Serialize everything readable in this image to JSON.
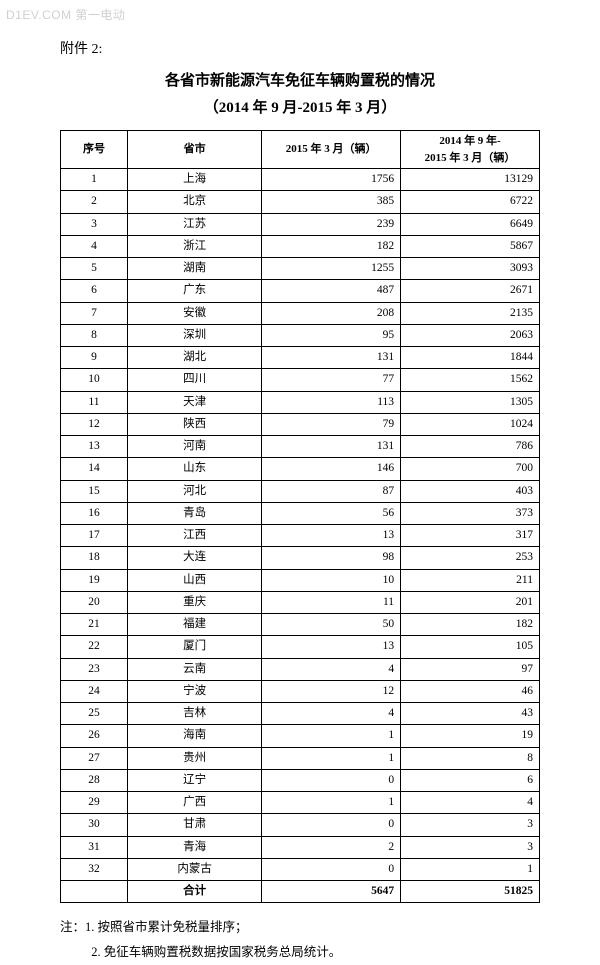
{
  "watermark": "D1EV.COM 第一电动",
  "attachment_label": "附件 2:",
  "title_line1": "各省市新能源汽车免征车辆购置税的情况",
  "title_line2": "（2014 年 9 月-2015 年 3 月）",
  "headers": {
    "num": "序号",
    "province": "省市",
    "col_a": "2015 年 3 月（辆）",
    "col_b": "2014 年 9 年-\n2015 年 3 月（辆）"
  },
  "rows": [
    {
      "n": "1",
      "p": "上海",
      "a": "1756",
      "b": "13129"
    },
    {
      "n": "2",
      "p": "北京",
      "a": "385",
      "b": "6722"
    },
    {
      "n": "3",
      "p": "江苏",
      "a": "239",
      "b": "6649"
    },
    {
      "n": "4",
      "p": "浙江",
      "a": "182",
      "b": "5867"
    },
    {
      "n": "5",
      "p": "湖南",
      "a": "1255",
      "b": "3093"
    },
    {
      "n": "6",
      "p": "广东",
      "a": "487",
      "b": "2671"
    },
    {
      "n": "7",
      "p": "安徽",
      "a": "208",
      "b": "2135"
    },
    {
      "n": "8",
      "p": "深圳",
      "a": "95",
      "b": "2063"
    },
    {
      "n": "9",
      "p": "湖北",
      "a": "131",
      "b": "1844"
    },
    {
      "n": "10",
      "p": "四川",
      "a": "77",
      "b": "1562"
    },
    {
      "n": "11",
      "p": "天津",
      "a": "113",
      "b": "1305"
    },
    {
      "n": "12",
      "p": "陕西",
      "a": "79",
      "b": "1024"
    },
    {
      "n": "13",
      "p": "河南",
      "a": "131",
      "b": "786"
    },
    {
      "n": "14",
      "p": "山东",
      "a": "146",
      "b": "700"
    },
    {
      "n": "15",
      "p": "河北",
      "a": "87",
      "b": "403"
    },
    {
      "n": "16",
      "p": "青岛",
      "a": "56",
      "b": "373"
    },
    {
      "n": "17",
      "p": "江西",
      "a": "13",
      "b": "317"
    },
    {
      "n": "18",
      "p": "大连",
      "a": "98",
      "b": "253"
    },
    {
      "n": "19",
      "p": "山西",
      "a": "10",
      "b": "211"
    },
    {
      "n": "20",
      "p": "重庆",
      "a": "11",
      "b": "201"
    },
    {
      "n": "21",
      "p": "福建",
      "a": "50",
      "b": "182"
    },
    {
      "n": "22",
      "p": "厦门",
      "a": "13",
      "b": "105"
    },
    {
      "n": "23",
      "p": "云南",
      "a": "4",
      "b": "97"
    },
    {
      "n": "24",
      "p": "宁波",
      "a": "12",
      "b": "46"
    },
    {
      "n": "25",
      "p": "吉林",
      "a": "4",
      "b": "43"
    },
    {
      "n": "26",
      "p": "海南",
      "a": "1",
      "b": "19"
    },
    {
      "n": "27",
      "p": "贵州",
      "a": "1",
      "b": "8"
    },
    {
      "n": "28",
      "p": "辽宁",
      "a": "0",
      "b": "6"
    },
    {
      "n": "29",
      "p": "广西",
      "a": "1",
      "b": "4"
    },
    {
      "n": "30",
      "p": "甘肃",
      "a": "0",
      "b": "3"
    },
    {
      "n": "31",
      "p": "青海",
      "a": "2",
      "b": "3"
    },
    {
      "n": "32",
      "p": "内蒙古",
      "a": "0",
      "b": "1"
    }
  ],
  "total": {
    "label": "合计",
    "a": "5647",
    "b": "51825"
  },
  "notes": {
    "prefix": "注：",
    "n1": "1. 按照省市累计免税量排序；",
    "n2": "2. 免征车辆购置税数据按国家税务总局统计。"
  }
}
